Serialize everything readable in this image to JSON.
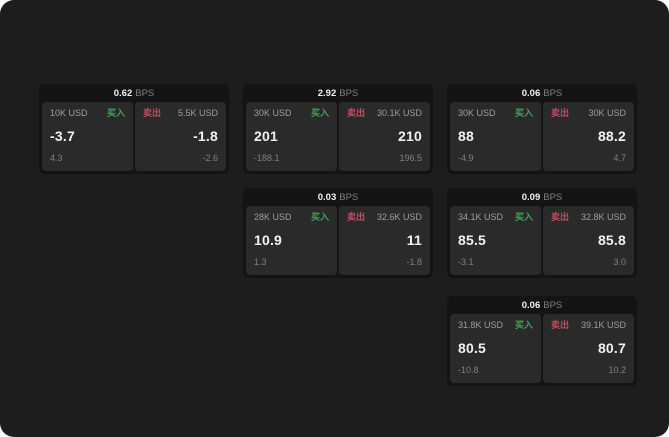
{
  "colors": {
    "page_bg": "#1d1d1d",
    "card_bg": "#141414",
    "panel_bg": "#2a2a2a",
    "text_primary": "#f2f2f2",
    "text_secondary": "#9e9e9e",
    "text_muted": "#808080",
    "buy_green": "#42a35c",
    "sell_red": "#c14d63"
  },
  "labels": {
    "bps_unit": "BPS",
    "buy": "买入",
    "sell": "卖出"
  },
  "cards": [
    {
      "bps": "0.62",
      "buy": {
        "amount": "10K USD",
        "price": "-3.7",
        "sub": "4.3"
      },
      "sell": {
        "amount": "5.5K USD",
        "price": "-1.8",
        "sub": "-2.6"
      }
    },
    {
      "bps": "2.92",
      "buy": {
        "amount": "30K USD",
        "price": "201",
        "sub": "-188.1"
      },
      "sell": {
        "amount": "30.1K USD",
        "price": "210",
        "sub": "196.5"
      }
    },
    {
      "bps": "0.06",
      "buy": {
        "amount": "30K USD",
        "price": "88",
        "sub": "-4.9"
      },
      "sell": {
        "amount": "30K USD",
        "price": "88.2",
        "sub": "4.7"
      }
    },
    {
      "bps": "0.03",
      "buy": {
        "amount": "28K USD",
        "price": "10.9",
        "sub": "1.3"
      },
      "sell": {
        "amount": "32.6K USD",
        "price": "11",
        "sub": "-1.8"
      }
    },
    {
      "bps": "0.09",
      "buy": {
        "amount": "34.1K USD",
        "price": "85.5",
        "sub": "-3.1"
      },
      "sell": {
        "amount": "32.8K USD",
        "price": "85.8",
        "sub": "3.0"
      }
    },
    {
      "bps": "0.06",
      "buy": {
        "amount": "31.8K USD",
        "price": "80.5",
        "sub": "-10.8"
      },
      "sell": {
        "amount": "39.1K USD",
        "price": "80.7",
        "sub": "10.2"
      }
    }
  ]
}
